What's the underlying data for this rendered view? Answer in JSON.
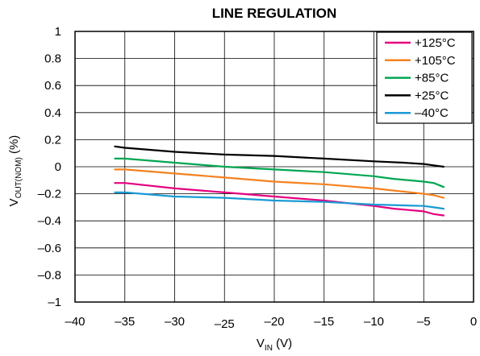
{
  "chart_data": {
    "type": "line",
    "title": "LINE REGULATION",
    "xlabel": {
      "main": "V",
      "sub": "IN",
      "unit": " (V)"
    },
    "ylabel": {
      "main": "V",
      "sub": "OUT(NOM)",
      "unit": " (%)"
    },
    "xlim": [
      -40,
      0
    ],
    "ylim": [
      -1,
      1
    ],
    "x_ticks": [
      {
        "value": -40,
        "label": "–40"
      },
      {
        "value": -35,
        "label": "–35"
      },
      {
        "value": -30,
        "label": "–30"
      },
      {
        "value": -25,
        "label": "–25"
      },
      {
        "value": -20,
        "label": "–20"
      },
      {
        "value": -15,
        "label": "–15"
      },
      {
        "value": -10,
        "label": "–10"
      },
      {
        "value": -5,
        "label": "–5"
      },
      {
        "value": 0,
        "label": "0"
      }
    ],
    "y_ticks": [
      {
        "value": 1,
        "label": "1"
      },
      {
        "value": 0.8,
        "label": "0.8"
      },
      {
        "value": 0.6,
        "label": "0.6"
      },
      {
        "value": 0.4,
        "label": "0.4"
      },
      {
        "value": 0.2,
        "label": "0.2"
      },
      {
        "value": 0,
        "label": "0"
      },
      {
        "value": -0.2,
        "label": "–0.2"
      },
      {
        "value": -0.4,
        "label": "–0.4"
      },
      {
        "value": -0.6,
        "label": "–0.6"
      },
      {
        "value": -0.8,
        "label": "–0.8"
      },
      {
        "value": -1,
        "label": "–1"
      }
    ],
    "grid": true,
    "legend_position": "top-right",
    "series": [
      {
        "name": "+125°C",
        "color": "#e5007e",
        "x": [
          -36,
          -35,
          -30,
          -25,
          -20,
          -15,
          -10,
          -8,
          -5,
          -4,
          -3
        ],
        "y": [
          -0.12,
          -0.12,
          -0.16,
          -0.19,
          -0.22,
          -0.25,
          -0.29,
          -0.31,
          -0.33,
          -0.35,
          -0.36
        ]
      },
      {
        "name": "+105°C",
        "color": "#f58220",
        "x": [
          -36,
          -35,
          -30,
          -25,
          -20,
          -15,
          -10,
          -5,
          -4,
          -3
        ],
        "y": [
          -0.02,
          -0.02,
          -0.05,
          -0.08,
          -0.11,
          -0.13,
          -0.16,
          -0.2,
          -0.21,
          -0.23
        ]
      },
      {
        "name": "+85°C",
        "color": "#00a651",
        "x": [
          -36,
          -35,
          -30,
          -25,
          -20,
          -15,
          -10,
          -8,
          -5,
          -4,
          -3
        ],
        "y": [
          0.06,
          0.06,
          0.03,
          0.0,
          -0.02,
          -0.04,
          -0.07,
          -0.09,
          -0.11,
          -0.12,
          -0.15
        ]
      },
      {
        "name": "+25°C",
        "color": "#000000",
        "x": [
          -36,
          -35,
          -30,
          -25,
          -20,
          -15,
          -10,
          -7,
          -5,
          -4,
          -3
        ],
        "y": [
          0.15,
          0.14,
          0.11,
          0.09,
          0.08,
          0.06,
          0.04,
          0.03,
          0.02,
          0.01,
          0.0
        ]
      },
      {
        "name": "–40°C",
        "color": "#1a9ad6",
        "x": [
          -36,
          -35,
          -30,
          -25,
          -20,
          -15,
          -10,
          -5,
          -4,
          -3
        ],
        "y": [
          -0.19,
          -0.19,
          -0.22,
          -0.23,
          -0.25,
          -0.26,
          -0.28,
          -0.29,
          -0.3,
          -0.31
        ]
      }
    ]
  }
}
